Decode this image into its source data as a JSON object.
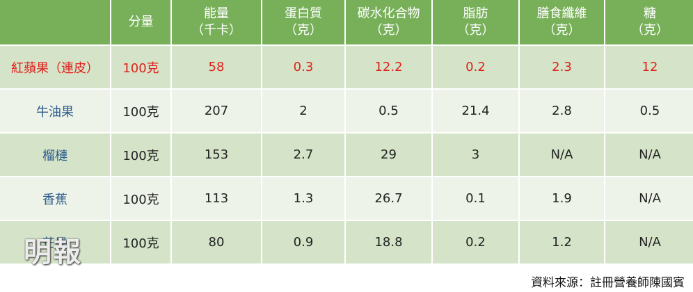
{
  "table": {
    "columns": [
      {
        "lines": [
          "分量"
        ]
      },
      {
        "lines": [
          "能量",
          "（千卡）"
        ]
      },
      {
        "lines": [
          "蛋白質",
          "（克）"
        ]
      },
      {
        "lines": [
          "碳水化合物",
          "（克）"
        ]
      },
      {
        "lines": [
          "脂肪",
          "（克）"
        ]
      },
      {
        "lines": [
          "膳食纖維",
          "（克）"
        ]
      },
      {
        "lines": [
          "糖",
          "（克）"
        ]
      }
    ],
    "rows": [
      {
        "name": "紅蘋果（連皮）",
        "color": "#e0201c",
        "cells": [
          "100克",
          "58",
          "0.3",
          "12.2",
          "0.2",
          "2.3",
          "12"
        ]
      },
      {
        "name": "牛油果",
        "cells": [
          "100克",
          "207",
          "2",
          "0.5",
          "21.4",
          "2.8",
          "0.5"
        ]
      },
      {
        "name": "榴槤",
        "cells": [
          "100克",
          "153",
          "2.7",
          "29",
          "3",
          "N/A",
          "N/A"
        ]
      },
      {
        "name": "香蕉",
        "cells": [
          "100克",
          "113",
          "1.3",
          "26.7",
          "0.1",
          "1.9",
          "N/A"
        ]
      },
      {
        "name": "芒果",
        "cells": [
          "100克",
          "80",
          "0.9",
          "18.8",
          "0.2",
          "1.2",
          "N/A"
        ]
      }
    ]
  },
  "source": "資料來源：註冊營養師陳國賓",
  "watermark": "明報"
}
